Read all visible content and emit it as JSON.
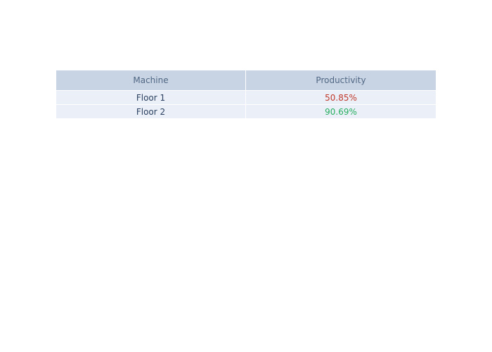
{
  "chart_data": {
    "type": "table",
    "columns": [
      "Machine",
      "Productivity"
    ],
    "rows": [
      {
        "machine": "Floor 1",
        "productivity": "50.85%",
        "color": "#c0392b"
      },
      {
        "machine": "Floor 2",
        "productivity": "90.69%",
        "color": "#27ae60"
      }
    ]
  },
  "colors": {
    "header_bg": "#c8d4e3",
    "header_text": "#506784",
    "cell_bg": "#ebf0f8",
    "cell_text": "#2a3f5f",
    "low_value": "#c0392b",
    "high_value": "#27ae60"
  }
}
